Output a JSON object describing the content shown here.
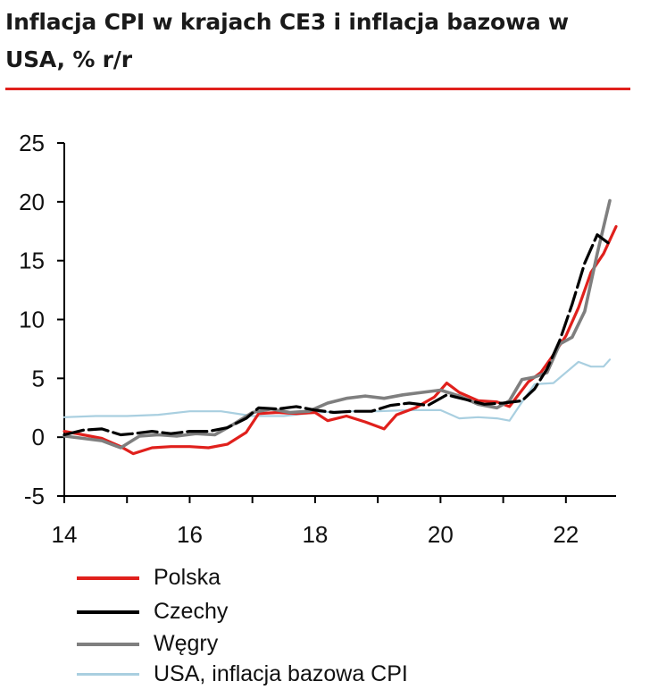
{
  "title": "Inflacja CPI w krajach CE3 i inflacja bazowa w USA, % r/r",
  "colors": {
    "title_rule": "#e0201c",
    "polska": "#e0201c",
    "czechy": "#000000",
    "wegry": "#7f7f7f",
    "usa": "#a9cfe0"
  },
  "chart_data": {
    "type": "line",
    "title": "Inflacja CPI w krajach CE3 i inflacja bazowa w USA, % r/r",
    "xlabel": "",
    "ylabel": "",
    "xlim": [
      14.0,
      22.8
    ],
    "ylim": [
      -5,
      25
    ],
    "x_ticks": [
      "14",
      "16",
      "18",
      "20",
      "22"
    ],
    "y_ticks": [
      "-5",
      "0",
      "5",
      "10",
      "15",
      "20",
      "25"
    ],
    "grid": false,
    "legend_position": "bottom",
    "series": [
      {
        "name": "Polska",
        "color": "#e0201c",
        "dash": "solid",
        "points": [
          [
            14.0,
            0.5
          ],
          [
            14.3,
            0.2
          ],
          [
            14.6,
            -0.1
          ],
          [
            14.9,
            -0.8
          ],
          [
            15.1,
            -1.4
          ],
          [
            15.4,
            -0.9
          ],
          [
            15.7,
            -0.8
          ],
          [
            16.0,
            -0.8
          ],
          [
            16.3,
            -0.9
          ],
          [
            16.6,
            -0.6
          ],
          [
            16.9,
            0.4
          ],
          [
            17.1,
            2.0
          ],
          [
            17.4,
            2.1
          ],
          [
            17.7,
            2.0
          ],
          [
            18.0,
            2.1
          ],
          [
            18.2,
            1.4
          ],
          [
            18.5,
            1.8
          ],
          [
            18.8,
            1.3
          ],
          [
            19.1,
            0.7
          ],
          [
            19.3,
            1.9
          ],
          [
            19.6,
            2.5
          ],
          [
            19.9,
            3.4
          ],
          [
            20.1,
            4.6
          ],
          [
            20.3,
            3.8
          ],
          [
            20.6,
            3.1
          ],
          [
            20.9,
            3.0
          ],
          [
            21.1,
            2.6
          ],
          [
            21.4,
            4.7
          ],
          [
            21.6,
            5.5
          ],
          [
            21.8,
            7.0
          ],
          [
            22.0,
            8.6
          ],
          [
            22.2,
            11.0
          ],
          [
            22.4,
            14.0
          ],
          [
            22.6,
            15.6
          ],
          [
            22.8,
            17.9
          ]
        ]
      },
      {
        "name": "Czechy",
        "color": "#000000",
        "dash": "dashed",
        "points": [
          [
            14.0,
            0.2
          ],
          [
            14.3,
            0.6
          ],
          [
            14.6,
            0.7
          ],
          [
            14.9,
            0.2
          ],
          [
            15.1,
            0.3
          ],
          [
            15.4,
            0.5
          ],
          [
            15.7,
            0.3
          ],
          [
            16.0,
            0.5
          ],
          [
            16.3,
            0.5
          ],
          [
            16.6,
            0.8
          ],
          [
            16.9,
            1.6
          ],
          [
            17.1,
            2.5
          ],
          [
            17.4,
            2.4
          ],
          [
            17.7,
            2.6
          ],
          [
            18.0,
            2.3
          ],
          [
            18.3,
            2.1
          ],
          [
            18.6,
            2.2
          ],
          [
            18.9,
            2.2
          ],
          [
            19.2,
            2.7
          ],
          [
            19.5,
            2.9
          ],
          [
            19.8,
            2.7
          ],
          [
            20.1,
            3.6
          ],
          [
            20.4,
            3.2
          ],
          [
            20.7,
            2.8
          ],
          [
            21.0,
            2.9
          ],
          [
            21.3,
            3.1
          ],
          [
            21.5,
            4.1
          ],
          [
            21.7,
            5.8
          ],
          [
            21.9,
            8.2
          ],
          [
            22.1,
            11.3
          ],
          [
            22.3,
            14.8
          ],
          [
            22.5,
            17.2
          ],
          [
            22.7,
            16.4
          ]
        ]
      },
      {
        "name": "Węgry",
        "color": "#7f7f7f",
        "dash": "solid",
        "points": [
          [
            14.0,
            0.1
          ],
          [
            14.3,
            -0.1
          ],
          [
            14.6,
            -0.3
          ],
          [
            14.9,
            -0.9
          ],
          [
            15.2,
            0.1
          ],
          [
            15.5,
            0.2
          ],
          [
            15.8,
            0.1
          ],
          [
            16.1,
            0.3
          ],
          [
            16.4,
            0.2
          ],
          [
            16.7,
            1.1
          ],
          [
            17.0,
            2.1
          ],
          [
            17.3,
            2.4
          ],
          [
            17.6,
            2.1
          ],
          [
            17.9,
            2.2
          ],
          [
            18.2,
            2.9
          ],
          [
            18.5,
            3.3
          ],
          [
            18.8,
            3.5
          ],
          [
            19.1,
            3.3
          ],
          [
            19.4,
            3.6
          ],
          [
            19.7,
            3.8
          ],
          [
            20.0,
            4.0
          ],
          [
            20.3,
            3.5
          ],
          [
            20.6,
            2.8
          ],
          [
            20.9,
            2.5
          ],
          [
            21.1,
            3.1
          ],
          [
            21.3,
            4.9
          ],
          [
            21.5,
            5.1
          ],
          [
            21.7,
            5.5
          ],
          [
            21.9,
            7.9
          ],
          [
            22.1,
            8.5
          ],
          [
            22.3,
            10.7
          ],
          [
            22.5,
            15.6
          ],
          [
            22.7,
            20.1
          ]
        ]
      },
      {
        "name": "USA, inflacja bazowa CPI",
        "color": "#a9cfe0",
        "dash": "solid",
        "points": [
          [
            14.0,
            1.7
          ],
          [
            14.5,
            1.8
          ],
          [
            15.0,
            1.8
          ],
          [
            15.5,
            1.9
          ],
          [
            16.0,
            2.2
          ],
          [
            16.5,
            2.2
          ],
          [
            17.0,
            1.8
          ],
          [
            17.5,
            1.8
          ],
          [
            18.0,
            2.1
          ],
          [
            18.5,
            2.2
          ],
          [
            19.0,
            2.2
          ],
          [
            19.5,
            2.3
          ],
          [
            20.0,
            2.3
          ],
          [
            20.3,
            1.6
          ],
          [
            20.6,
            1.7
          ],
          [
            20.9,
            1.6
          ],
          [
            21.1,
            1.4
          ],
          [
            21.3,
            3.0
          ],
          [
            21.5,
            4.5
          ],
          [
            21.8,
            4.6
          ],
          [
            22.0,
            5.5
          ],
          [
            22.2,
            6.4
          ],
          [
            22.4,
            6.0
          ],
          [
            22.6,
            6.0
          ],
          [
            22.7,
            6.6
          ]
        ]
      }
    ]
  }
}
